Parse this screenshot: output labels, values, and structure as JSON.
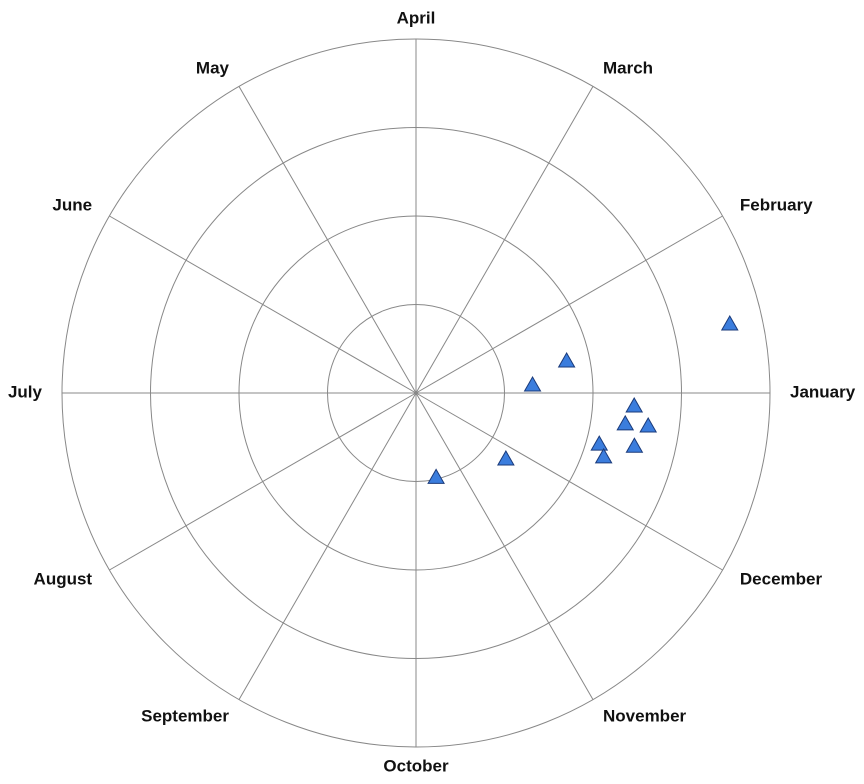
{
  "chart_data": {
    "type": "polar",
    "categories": [
      "January",
      "February",
      "March",
      "April",
      "May",
      "June",
      "July",
      "August",
      "September",
      "October",
      "November",
      "December"
    ],
    "x": [
      12.4,
      12.0,
      3.9,
      356.6,
      351.6,
      351.9,
      344.4,
      346.3,
      341.2,
      323.7,
      283.4
    ],
    "values": [
      3.63,
      1.74,
      1.32,
      2.47,
      2.39,
      2.65,
      2.15,
      2.54,
      2.24,
      1.26,
      0.98
    ],
    "xlim": [
      0,
      360
    ],
    "ylim": [
      0,
      4
    ],
    "yticks": [
      1,
      2,
      3,
      4
    ],
    "color": "#3b7ddd",
    "grid": true
  }
}
